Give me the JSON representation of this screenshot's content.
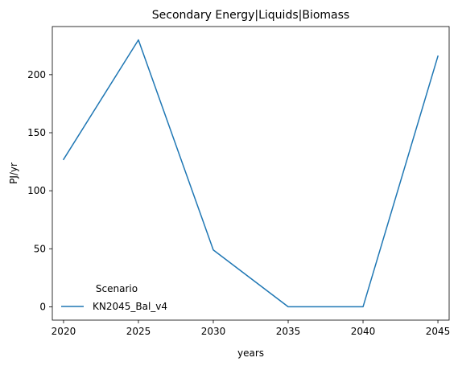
{
  "chart_data": {
    "type": "line",
    "title": "Secondary Energy|Liquids|Biomass",
    "xlabel": "years",
    "ylabel": "PJ/yr",
    "x": [
      2020,
      2025,
      2030,
      2035,
      2040,
      2045
    ],
    "series": [
      {
        "name": "KN2045_Bal_v4",
        "color": "#1f77b4",
        "values": [
          127,
          230,
          49,
          0,
          0,
          216
        ]
      }
    ],
    "xticks": [
      2020,
      2025,
      2030,
      2035,
      2040,
      2045
    ],
    "xtick_labels": [
      "2020",
      "2025",
      "2030",
      "2035",
      "2040",
      "2045"
    ],
    "yticks": [
      0,
      50,
      100,
      150,
      200
    ],
    "ytick_labels": [
      "0",
      "50",
      "100",
      "150",
      "200"
    ],
    "xlim": [
      2019.25,
      2045.75
    ],
    "ylim": [
      -11.5,
      241.5
    ],
    "grid": false,
    "legend": {
      "title": "Scenario",
      "placement": "lower-left",
      "frame": false
    }
  }
}
